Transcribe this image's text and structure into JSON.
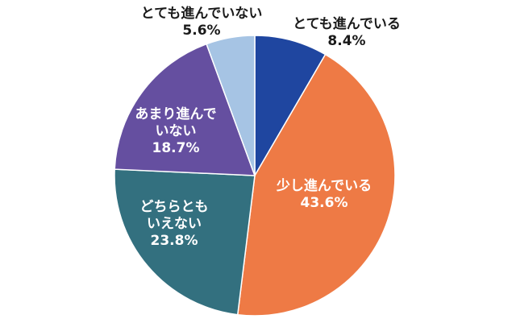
{
  "chart_data": {
    "type": "pie",
    "title": "",
    "slices": [
      {
        "label": [
          "とても進んでいる"
        ],
        "value": 8.4,
        "value_label": "8.4%",
        "color": "#1f46a0"
      },
      {
        "label": [
          "少し進んでいる"
        ],
        "value": 43.6,
        "value_label": "43.6%",
        "color": "#ee7a45"
      },
      {
        "label": [
          "どちらとも",
          "いえない"
        ],
        "value": 23.8,
        "value_label": "23.8%",
        "color": "#33707f"
      },
      {
        "label": [
          "あまり進んで",
          "いない"
        ],
        "value": 18.7,
        "value_label": "18.7%",
        "color": "#654fa0"
      },
      {
        "label": [
          "とても進んでいない"
        ],
        "value": 5.6,
        "value_label": "5.6%",
        "color": "#a6c4e4"
      }
    ]
  }
}
